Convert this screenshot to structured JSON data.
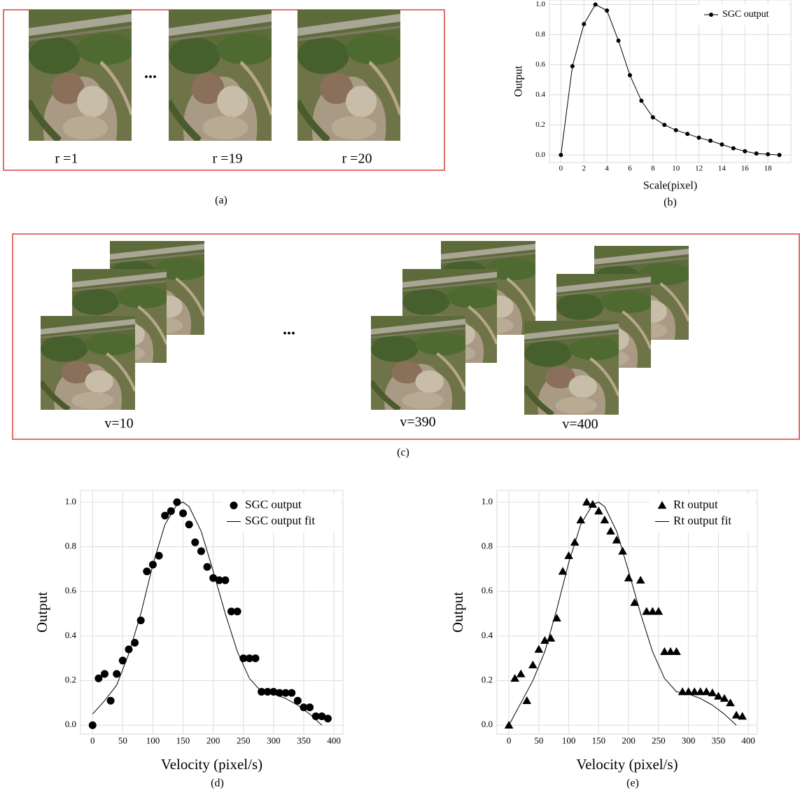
{
  "panel_a": {
    "images": [
      {
        "label": "r =1"
      },
      {
        "label": "r =19"
      },
      {
        "label": "r =20"
      }
    ],
    "ellipsis": "...",
    "caption": "(a)"
  },
  "panel_c": {
    "stacks": [
      {
        "label": "v=10"
      },
      {
        "label": "v=390"
      },
      {
        "label": "v=400"
      }
    ],
    "ellipsis": "...",
    "caption": "(c)"
  },
  "chart_data": [
    {
      "type": "line",
      "caption": "(b)",
      "x_label": "Scale(pixel)",
      "y_label": "Output",
      "grid": true,
      "legend": "upper right",
      "xlim": [
        -1,
        20
      ],
      "ylim": [
        -0.05,
        1.03
      ],
      "xticks": [
        0,
        2,
        4,
        6,
        8,
        10,
        12,
        14,
        16,
        18
      ],
      "yticks": [
        {
          "value": 0,
          "label": "0.0"
        },
        {
          "value": 0.2,
          "label": "0.2"
        },
        {
          "value": 0.4,
          "label": "0.4"
        },
        {
          "value": 0.6,
          "label": "0.6"
        },
        {
          "value": 0.8,
          "label": "0.8"
        },
        {
          "value": 1,
          "label": "1.0"
        }
      ],
      "series": [
        {
          "name": "SGC output",
          "color": "#000000",
          "style": "line+markers",
          "marker": "circle",
          "x": [
            0,
            1,
            2,
            3,
            4,
            5,
            6,
            7,
            8,
            9,
            10,
            11,
            12,
            13,
            14,
            15,
            16,
            17,
            18,
            19
          ],
          "values": [
            0,
            0.59,
            0.87,
            1.0,
            0.96,
            0.76,
            0.53,
            0.36,
            0.25,
            0.2,
            0.165,
            0.14,
            0.115,
            0.095,
            0.07,
            0.045,
            0.025,
            0.01,
            0.005,
            0
          ]
        }
      ]
    },
    {
      "type": "scatter",
      "caption": "(d)",
      "x_label": "Velocity (pixel/s)",
      "y_label": "Output",
      "grid": true,
      "legend": "upper right",
      "xlim": [
        -20,
        415
      ],
      "ylim": [
        -0.04,
        1.053
      ],
      "xticks": [
        0,
        50,
        100,
        150,
        200,
        250,
        300,
        350,
        400
      ],
      "yticks": [
        {
          "value": 0,
          "label": "0.0"
        },
        {
          "value": 0.2,
          "label": "0.2"
        },
        {
          "value": 0.4,
          "label": "0.4"
        },
        {
          "value": 0.6,
          "label": "0.6"
        },
        {
          "value": 0.8,
          "label": "0.8"
        },
        {
          "value": 1,
          "label": "1.0"
        }
      ],
      "series": [
        {
          "name": "SGC output",
          "color": "#000000",
          "style": "markers",
          "marker": "circle",
          "x": [
            0,
            10,
            20,
            30,
            40,
            50,
            60,
            70,
            80,
            90,
            100,
            110,
            120,
            130,
            140,
            150,
            160,
            170,
            180,
            190,
            200,
            210,
            220,
            230,
            240,
            250,
            260,
            270,
            280,
            290,
            300,
            310,
            320,
            330,
            340,
            350,
            360,
            370,
            380,
            390
          ],
          "values": [
            0,
            0.21,
            0.23,
            0.11,
            0.23,
            0.29,
            0.34,
            0.37,
            0.47,
            0.69,
            0.72,
            0.76,
            0.94,
            0.96,
            1.0,
            0.95,
            0.9,
            0.82,
            0.78,
            0.71,
            0.66,
            0.65,
            0.65,
            0.51,
            0.51,
            0.3,
            0.3,
            0.3,
            0.15,
            0.15,
            0.15,
            0.145,
            0.145,
            0.145,
            0.11,
            0.08,
            0.08,
            0.04,
            0.04,
            0.03
          ]
        },
        {
          "name": "SGC output fit",
          "color": "#000000",
          "style": "line",
          "x": [
            0,
            20,
            40,
            60,
            80,
            100,
            120,
            140,
            150,
            160,
            180,
            200,
            220,
            240,
            260,
            280,
            300,
            320,
            340,
            360,
            380
          ],
          "values": [
            0.05,
            0.11,
            0.18,
            0.32,
            0.5,
            0.72,
            0.9,
            0.99,
            1.0,
            0.98,
            0.87,
            0.69,
            0.5,
            0.33,
            0.21,
            0.15,
            0.14,
            0.12,
            0.09,
            0.05,
            0
          ]
        }
      ]
    },
    {
      "type": "scatter",
      "caption": "(e)",
      "x_label": "Velocity (pixel/s)",
      "y_label": "Output",
      "grid": true,
      "legend": "upper right",
      "xlim": [
        -20,
        415
      ],
      "ylim": [
        -0.04,
        1.053
      ],
      "xticks": [
        0,
        50,
        100,
        150,
        200,
        250,
        300,
        350,
        400
      ],
      "yticks": [
        {
          "value": 0,
          "label": "0.0"
        },
        {
          "value": 0.2,
          "label": "0.2"
        },
        {
          "value": 0.4,
          "label": "0.4"
        },
        {
          "value": 0.6,
          "label": "0.6"
        },
        {
          "value": 0.8,
          "label": "0.8"
        },
        {
          "value": 1,
          "label": "1.0"
        }
      ],
      "series": [
        {
          "name": "Rt output",
          "color": "#000000",
          "style": "markers",
          "marker": "triangle",
          "x": [
            0,
            10,
            20,
            30,
            40,
            50,
            60,
            70,
            80,
            90,
            100,
            110,
            120,
            130,
            140,
            150,
            160,
            170,
            180,
            190,
            200,
            210,
            220,
            230,
            240,
            250,
            260,
            270,
            280,
            290,
            300,
            310,
            320,
            330,
            340,
            350,
            360,
            370,
            380,
            390
          ],
          "values": [
            0,
            0.21,
            0.23,
            0.11,
            0.27,
            0.34,
            0.38,
            0.39,
            0.48,
            0.69,
            0.76,
            0.82,
            0.92,
            1.0,
            0.99,
            0.96,
            0.92,
            0.87,
            0.83,
            0.78,
            0.66,
            0.55,
            0.65,
            0.51,
            0.51,
            0.51,
            0.33,
            0.33,
            0.33,
            0.15,
            0.15,
            0.15,
            0.15,
            0.15,
            0.145,
            0.13,
            0.12,
            0.1,
            0.045,
            0.04
          ]
        },
        {
          "name": "Rt output fit",
          "color": "#000000",
          "style": "line",
          "x": [
            0,
            20,
            40,
            60,
            80,
            100,
            120,
            140,
            150,
            160,
            180,
            200,
            220,
            240,
            260,
            280,
            300,
            320,
            340,
            360,
            380
          ],
          "values": [
            0.0,
            0.1,
            0.2,
            0.33,
            0.52,
            0.73,
            0.9,
            0.99,
            1.0,
            0.98,
            0.87,
            0.69,
            0.5,
            0.33,
            0.21,
            0.15,
            0.14,
            0.12,
            0.09,
            0.05,
            0
          ]
        }
      ]
    }
  ]
}
